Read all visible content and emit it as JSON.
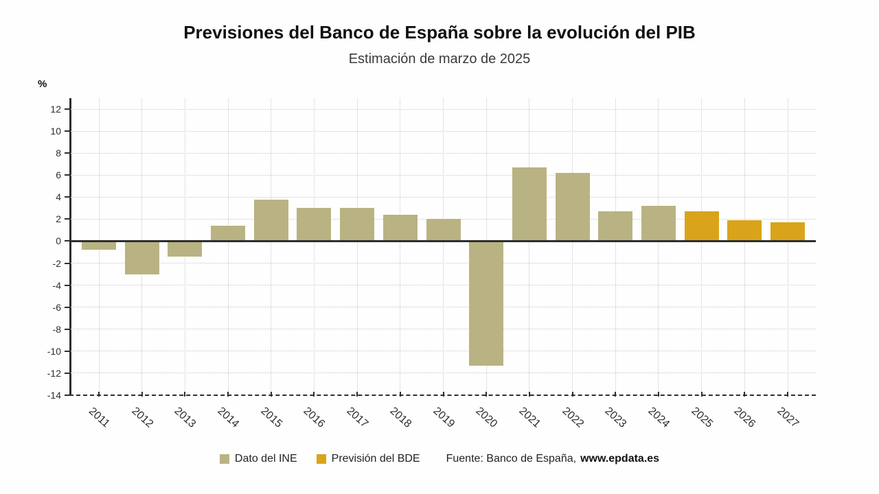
{
  "chart_data": {
    "type": "bar",
    "title": "Previsiones del Banco de España sobre la evolución del PIB",
    "subtitle": "Estimación de marzo de 2025",
    "ylabel": "%",
    "categories": [
      "2011",
      "2012",
      "2013",
      "2014",
      "2015",
      "2016",
      "2017",
      "2018",
      "2019",
      "2020",
      "2021",
      "2022",
      "2023",
      "2024",
      "2025",
      "2026",
      "2027"
    ],
    "series": [
      {
        "name": "Dato del INE",
        "color": "#b9b383",
        "values": [
          -0.8,
          -3,
          -1.4,
          1.4,
          3.8,
          3,
          3,
          2.4,
          2,
          -11.3,
          6.7,
          6.2,
          2.7,
          3.2,
          null,
          null,
          null
        ]
      },
      {
        "name": "Previsión del BDE",
        "color": "#d9a419",
        "values": [
          null,
          null,
          null,
          null,
          null,
          null,
          null,
          null,
          null,
          null,
          null,
          null,
          null,
          null,
          2.7,
          1.9,
          1.7
        ]
      }
    ],
    "ylim": [
      -14,
      13
    ],
    "ytick_step": 2,
    "ytick_range": [
      -14,
      12
    ],
    "grid": true,
    "legend_position": "bottom"
  },
  "source": {
    "prefix": "Fuente: Banco de España,",
    "site": "www.epdata.es"
  }
}
